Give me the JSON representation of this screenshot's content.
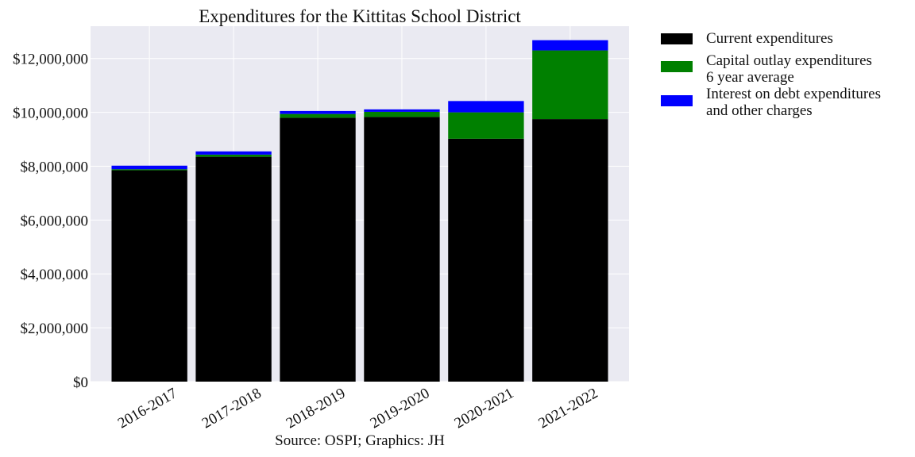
{
  "chart_data": {
    "type": "bar",
    "stacked": true,
    "title": "Expenditures for the Kittitas School District",
    "xlabel": "Source: OSPI; Graphics: JH",
    "ylabel": "",
    "categories": [
      "2016-2017",
      "2017-2018",
      "2018-2019",
      "2019-2020",
      "2020-2021",
      "2021-2022"
    ],
    "series": [
      {
        "name": "Current expenditures",
        "color": "#000000",
        "values": [
          7850000,
          8350000,
          9800000,
          9830000,
          9020000,
          9750000
        ]
      },
      {
        "name": "Capital outlay expenditures\n6 year average",
        "color": "#008000",
        "values": [
          40000,
          80000,
          140000,
          190000,
          980000,
          2550000
        ]
      },
      {
        "name": "Interest on debt expenditures\nand other charges",
        "color": "#0000ff",
        "values": [
          130000,
          120000,
          110000,
          90000,
          420000,
          380000
        ]
      }
    ],
    "ylim": [
      0,
      13200000
    ],
    "yticks": [
      0,
      2000000,
      4000000,
      6000000,
      8000000,
      10000000,
      12000000
    ],
    "ytick_labels": [
      "$0",
      "$2,000,000",
      "$4,000,000",
      "$6,000,000",
      "$8,000,000",
      "$10,000,000",
      "$12,000,000"
    ],
    "grid": true,
    "legend_position": "outside-right-top"
  }
}
